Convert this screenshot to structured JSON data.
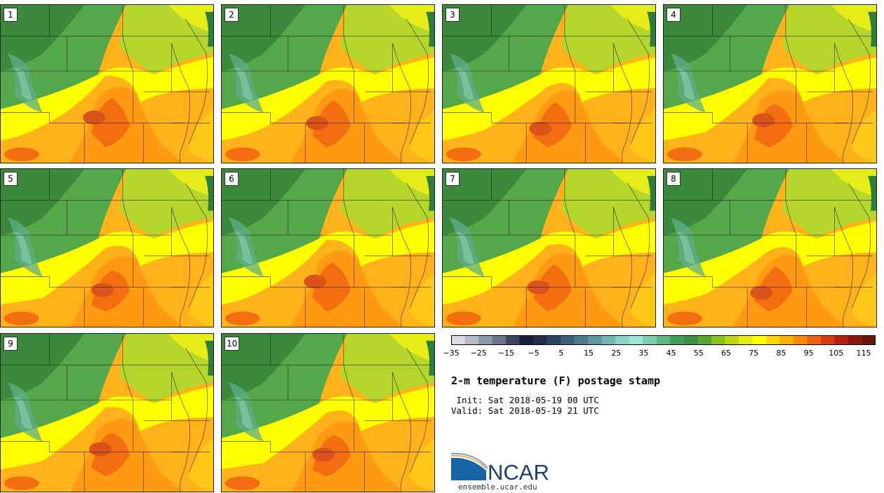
{
  "panels": [
    {
      "label": "1",
      "variant": 0
    },
    {
      "label": "2",
      "variant": 1
    },
    {
      "label": "3",
      "variant": 2
    },
    {
      "label": "4",
      "variant": 3
    },
    {
      "label": "5",
      "variant": 4
    },
    {
      "label": "6",
      "variant": 5
    },
    {
      "label": "7",
      "variant": 6
    },
    {
      "label": "8",
      "variant": 7
    },
    {
      "label": "9",
      "variant": 8
    },
    {
      "label": "10",
      "variant": 9
    }
  ],
  "colorbar": {
    "colors": [
      "#d9dde3",
      "#b5bcc6",
      "#8e97a6",
      "#6a7488",
      "#3a4660",
      "#162038",
      "#1f2d48",
      "#2d4660",
      "#3d5e76",
      "#4e7a8c",
      "#5f98a4",
      "#73b5b5",
      "#8bd3c7",
      "#9be8d8",
      "#7ad0a8",
      "#5bb880",
      "#3f9f5a",
      "#3a8f3a",
      "#5aa530",
      "#8bc01e",
      "#bcd80f",
      "#e4ec10",
      "#ffff00",
      "#ffd700",
      "#ffb000",
      "#ff8a00",
      "#f06010",
      "#d93a10",
      "#b82010",
      "#8c1a0c",
      "#6b1608"
    ],
    "tick_labels": [
      "−35",
      "−25",
      "−15",
      "−5",
      "5",
      "15",
      "25",
      "35",
      "45",
      "55",
      "65",
      "75",
      "85",
      "95",
      "105",
      "115"
    ]
  },
  "title": "2-m temperature (F) postage stamp",
  "init": " Init: Sat 2018-05-19 00 UTC",
  "valid": "Valid: Sat 2018-05-19 21 UTC",
  "logo_text": "NCAR",
  "site": "ensemble.ucar.edu"
}
